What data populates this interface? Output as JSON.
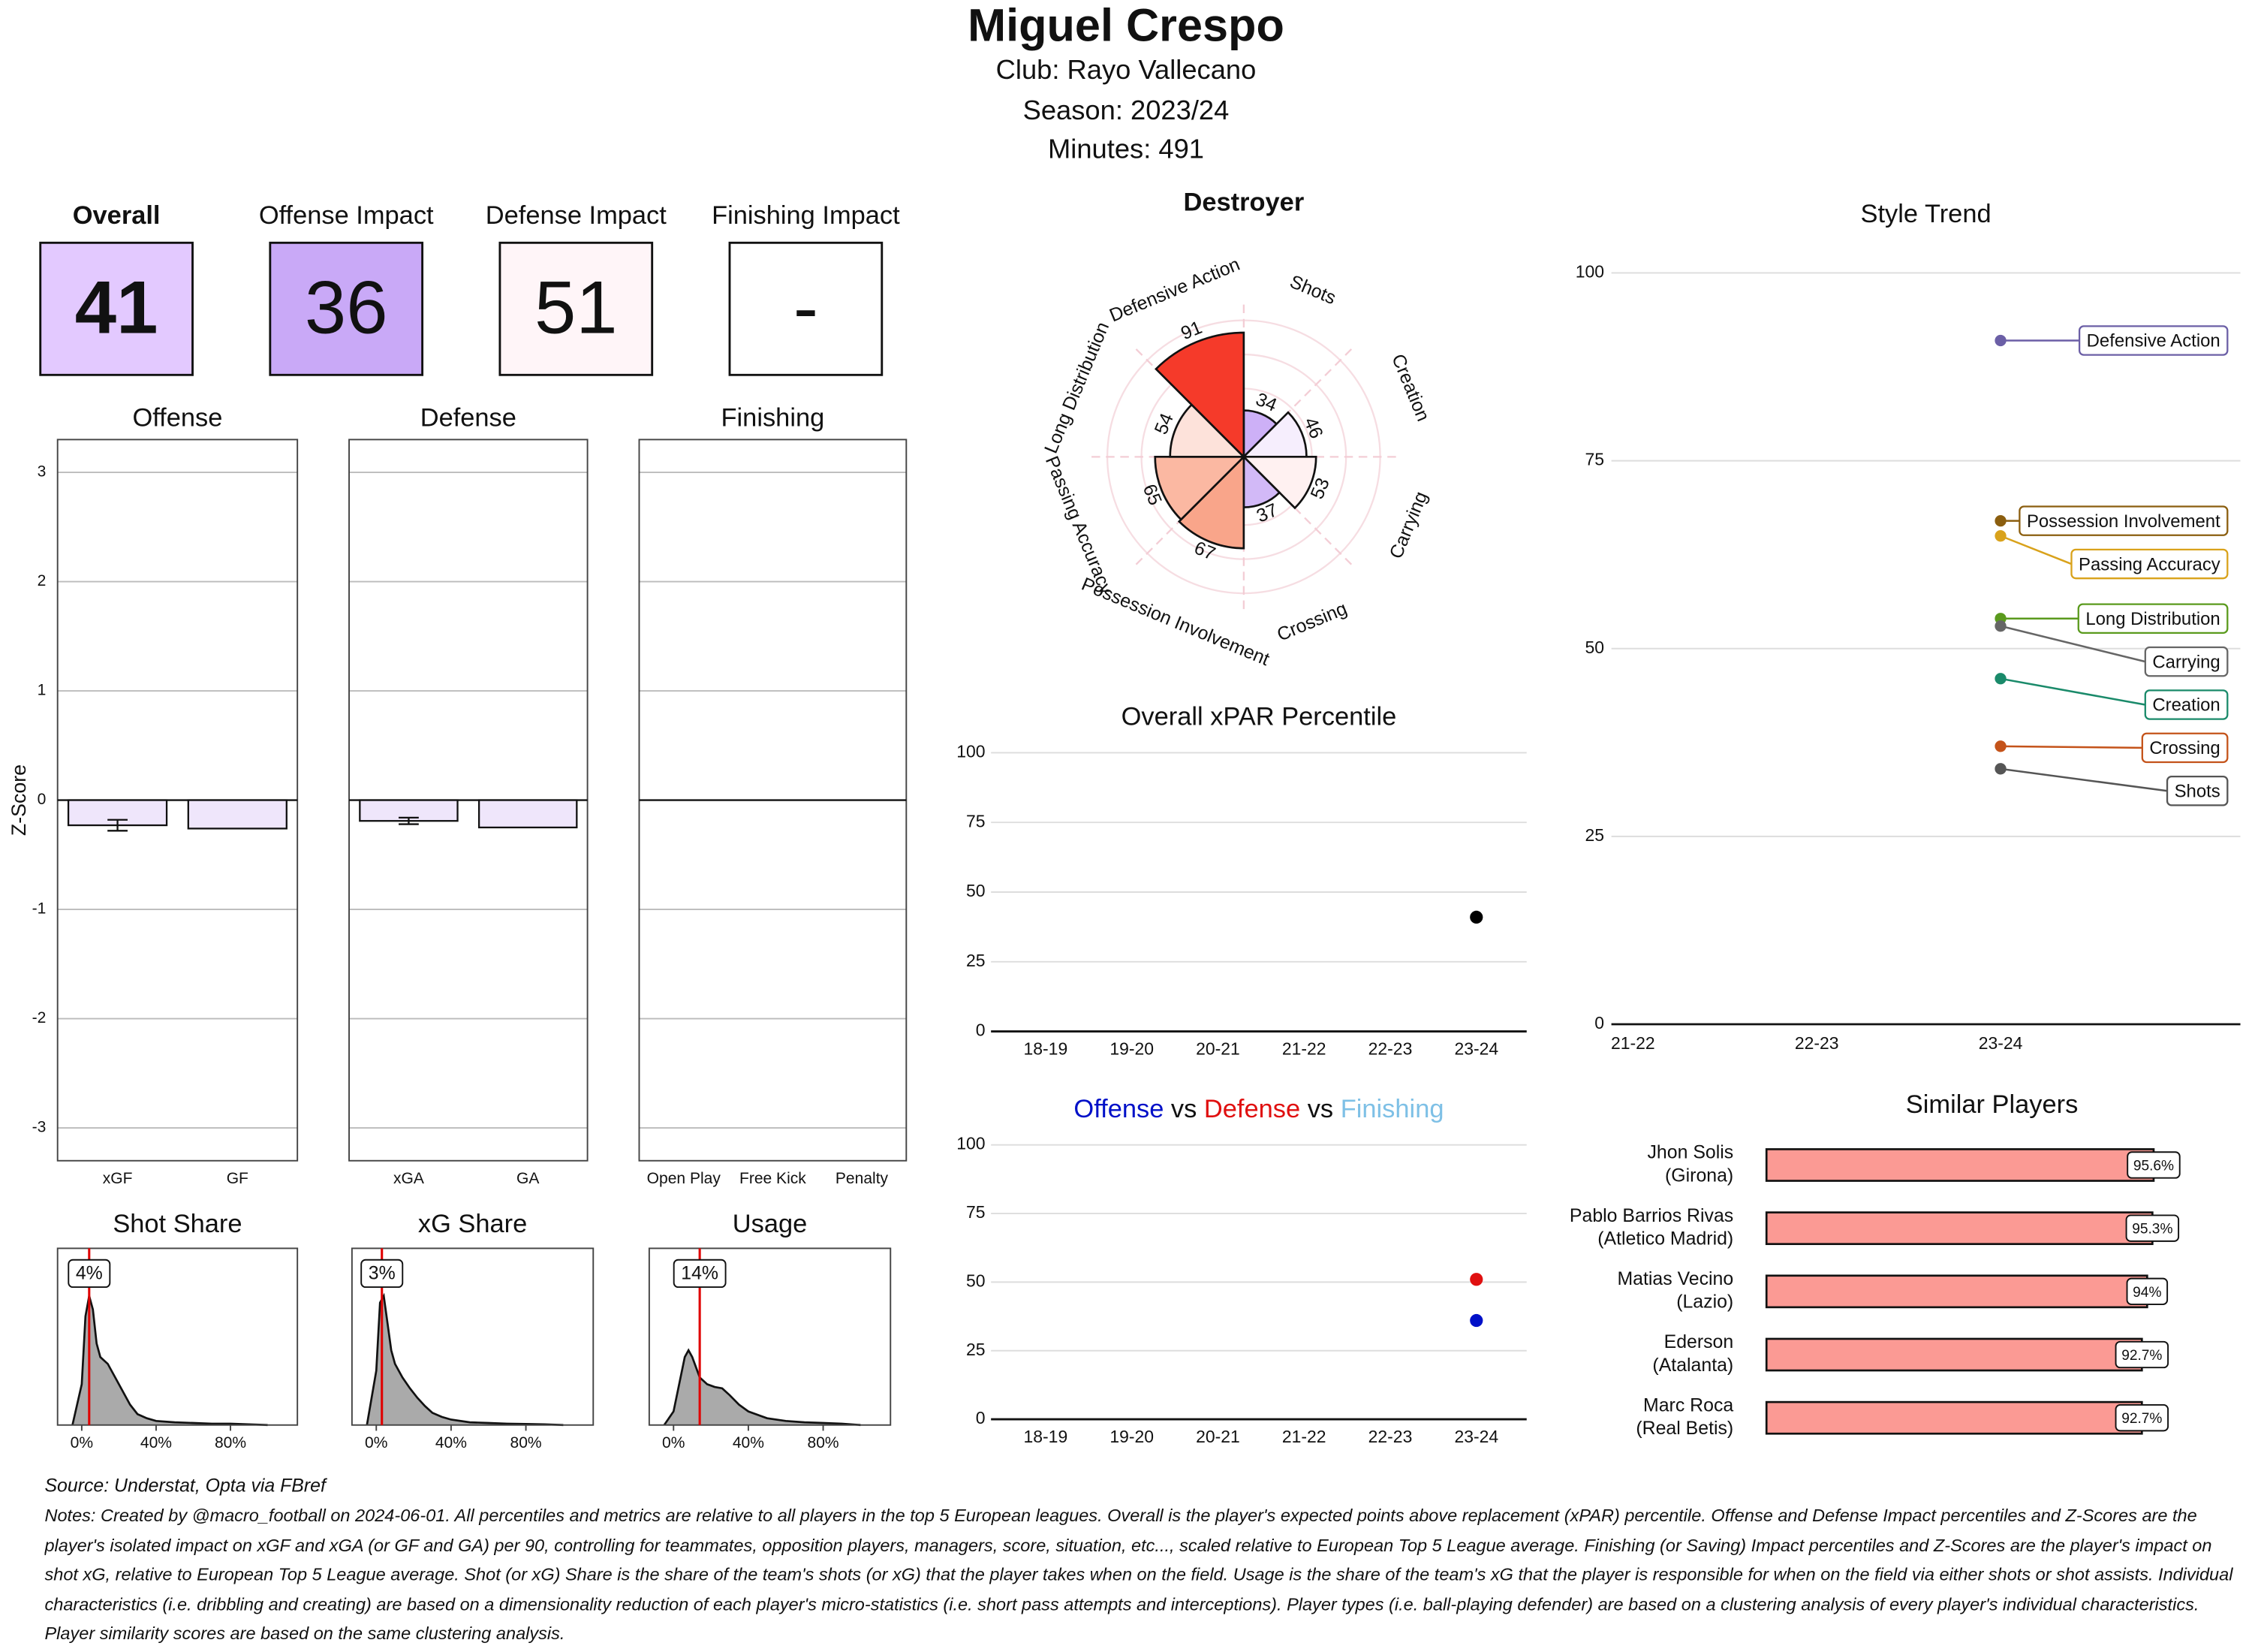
{
  "header": {
    "title": "Miguel Crespo",
    "club": "Club:  Rayo Vallecano",
    "season": "Season:  2023/24",
    "minutes": "Minutes:  491"
  },
  "scores": [
    {
      "label": "Overall",
      "value": "41",
      "color": "#e3c9ff"
    },
    {
      "label": "Offense Impact",
      "value": "36",
      "color": "#c9a9f7"
    },
    {
      "label": "Defense Impact",
      "value": "51",
      "color": "#fff5f8"
    },
    {
      "label": "Finishing Impact",
      "value": "-",
      "color": "#ffffff"
    }
  ],
  "chart_data": [
    {
      "type": "zbar",
      "title": "Offense",
      "y_label": "Z-Score",
      "categories": [
        "xGF",
        "GF"
      ],
      "values": [
        -0.23,
        -0.26
      ],
      "errors": [
        0.05,
        null
      ],
      "color": "#efe6fb",
      "ylim": [
        -3.3,
        3.3
      ],
      "yticks": [
        -3,
        -2,
        -1,
        0,
        1,
        2,
        3
      ],
      "grid": true
    },
    {
      "type": "zbar",
      "title": "Defense",
      "categories": [
        "xGA",
        "GA"
      ],
      "values": [
        -0.19,
        -0.25
      ],
      "errors": [
        0.03,
        null
      ],
      "color": "#efe6fb",
      "ylim": [
        -3.3,
        3.3
      ],
      "yticks": [
        -3,
        -2,
        -1,
        0,
        1,
        2,
        3
      ],
      "grid": true
    },
    {
      "type": "zbar",
      "title": "Finishing",
      "categories": [
        "Open Play",
        "Free Kick",
        "Penalty"
      ],
      "values": [
        0,
        0,
        0
      ],
      "color": "#efe6fb",
      "ylim": [
        -3.3,
        3.3
      ],
      "yticks": [
        -3,
        -2,
        -1,
        0,
        1,
        2,
        3
      ],
      "grid": true
    },
    {
      "type": "density",
      "title": "Shot Share",
      "x": [
        -5,
        0,
        2,
        4,
        6,
        8,
        10,
        14,
        18,
        22,
        26,
        30,
        35,
        40,
        50,
        60,
        70,
        80,
        90,
        100
      ],
      "values": [
        0,
        0.3,
        0.8,
        0.95,
        0.85,
        0.6,
        0.5,
        0.45,
        0.35,
        0.25,
        0.15,
        0.08,
        0.05,
        0.03,
        0.02,
        0.015,
        0.01,
        0.01,
        0.005,
        0
      ],
      "marker": {
        "value": 4,
        "label": "4%"
      },
      "marker_color": "#e00000",
      "color": "#aaaaaa",
      "xlim": [
        -13,
        116
      ],
      "ylim": [
        0,
        1.3
      ],
      "xticks": [
        {
          "value": 0,
          "label": "0%"
        },
        {
          "value": 40,
          "label": "40%"
        },
        {
          "value": 80,
          "label": "80%"
        }
      ]
    },
    {
      "type": "density",
      "title": "xG Share",
      "x": [
        -5,
        0,
        2,
        4,
        6,
        8,
        10,
        14,
        18,
        22,
        26,
        30,
        35,
        40,
        50,
        60,
        70,
        80,
        90,
        100
      ],
      "values": [
        0,
        0.4,
        0.9,
        0.95,
        0.75,
        0.55,
        0.45,
        0.35,
        0.27,
        0.2,
        0.14,
        0.09,
        0.06,
        0.04,
        0.02,
        0.015,
        0.01,
        0.008,
        0.005,
        0
      ],
      "marker": {
        "value": 3,
        "label": "3%"
      },
      "marker_color": "#e00000",
      "color": "#aaaaaa",
      "xlim": [
        -13,
        116
      ],
      "ylim": [
        0,
        1.3
      ],
      "xticks": [
        {
          "value": 0,
          "label": "0%"
        },
        {
          "value": 40,
          "label": "40%"
        },
        {
          "value": 80,
          "label": "80%"
        }
      ]
    },
    {
      "type": "density",
      "title": "Usage",
      "x": [
        -5,
        0,
        3,
        6,
        8,
        10,
        14,
        18,
        22,
        26,
        30,
        35,
        40,
        50,
        60,
        70,
        80,
        90,
        100
      ],
      "values": [
        0,
        0.1,
        0.3,
        0.5,
        0.55,
        0.5,
        0.35,
        0.3,
        0.28,
        0.27,
        0.22,
        0.15,
        0.1,
        0.05,
        0.03,
        0.02,
        0.015,
        0.01,
        0
      ],
      "marker": {
        "value": 14,
        "label": "14%"
      },
      "marker_color": "#e00000",
      "color": "#aaaaaa",
      "xlim": [
        -13,
        116
      ],
      "ylim": [
        0,
        1.3
      ],
      "xticks": [
        {
          "value": 0,
          "label": "0%"
        },
        {
          "value": 40,
          "label": "40%"
        },
        {
          "value": 80,
          "label": "80%"
        }
      ]
    },
    {
      "type": "polar-bar",
      "title": "Destroyer",
      "categories": [
        "Shots",
        "Creation",
        "Carrying",
        "Crossing",
        "Possession Involvement",
        "Passing Accuracy",
        "Long Distribution",
        "Defensive Action"
      ],
      "values": [
        34,
        46,
        53,
        37,
        67,
        65,
        54,
        91
      ],
      "colors": [
        "#cdb0f7",
        "#f6eefd",
        "#fff1f1",
        "#d2b9f7",
        "#f9a58a",
        "#fbb8a2",
        "#fde2da",
        "#f53a2a"
      ],
      "rlim": [
        0,
        100
      ]
    },
    {
      "type": "dot",
      "title": "Overall xPAR Percentile",
      "categories": [
        "18-19",
        "19-20",
        "20-21",
        "21-22",
        "22-23",
        "23-24"
      ],
      "values": [
        null,
        null,
        null,
        null,
        null,
        41
      ],
      "color": "#000000",
      "ylim": [
        0,
        100
      ],
      "yticks": [
        0,
        25,
        50,
        75,
        100
      ],
      "grid": true
    },
    {
      "type": "dot",
      "separator": "vs",
      "categories": [
        "18-19",
        "19-20",
        "20-21",
        "21-22",
        "22-23",
        "23-24"
      ],
      "series": [
        {
          "name": "Offense",
          "color": "#0010c8",
          "values": [
            null,
            null,
            null,
            null,
            null,
            36
          ]
        },
        {
          "name": "Defense",
          "color": "#e01010",
          "values": [
            null,
            null,
            null,
            null,
            null,
            51
          ]
        },
        {
          "name": "Finishing",
          "color": "#7ec0e6",
          "values": [
            null,
            null,
            null,
            null,
            null,
            null
          ]
        }
      ],
      "ylim": [
        0,
        100
      ],
      "yticks": [
        0,
        25,
        50,
        75,
        100
      ],
      "grid": true
    },
    {
      "type": "line",
      "title": "Style Trend",
      "categories": [
        "21-22",
        "22-23",
        "23-24"
      ],
      "series": [
        {
          "name": "Defensive Action",
          "color": "#6b5fa6",
          "values": [
            null,
            null,
            91
          ]
        },
        {
          "name": "Possession Involvement",
          "color": "#8b5e0f",
          "values": [
            null,
            null,
            67
          ]
        },
        {
          "name": "Passing Accuracy",
          "color": "#d9a21b",
          "values": [
            null,
            null,
            65
          ]
        },
        {
          "name": "Long Distribution",
          "color": "#5a9a1d",
          "values": [
            null,
            null,
            54
          ]
        },
        {
          "name": "Carrying",
          "color": "#666666",
          "values": [
            null,
            null,
            53
          ]
        },
        {
          "name": "Creation",
          "color": "#1a8a6a",
          "values": [
            null,
            null,
            46
          ]
        },
        {
          "name": "Crossing",
          "color": "#c4531a",
          "values": [
            null,
            null,
            37
          ]
        },
        {
          "name": "Shots",
          "color": "#555555",
          "values": [
            null,
            null,
            34
          ]
        }
      ],
      "ylim": [
        0,
        100
      ],
      "yticks": [
        0,
        25,
        50,
        75,
        100
      ],
      "grid": true
    },
    {
      "type": "hbar",
      "title": "Similar Players",
      "categories": [
        "Jhon Solis",
        "Pablo Barrios Rivas",
        "Matias Vecino",
        "Ederson",
        "Marc Roca"
      ],
      "groups": [
        "(Girona)",
        "(Atletico Madrid)",
        "(Lazio)",
        "(Atalanta)",
        "(Real Betis)"
      ],
      "values": [
        95.6,
        95.3,
        94,
        92.7,
        92.7
      ],
      "value_labels": [
        "95.6%",
        "95.3%",
        "94%",
        "92.7%",
        "92.7%"
      ],
      "color": "#fb9a94",
      "xlim": [
        0,
        100
      ]
    }
  ],
  "source": "Source: Understat, Opta via FBref",
  "notes": "Notes: Created by @macro_football on 2024-06-01. All percentiles and metrics are relative to all players in the top 5 European leagues. Overall is the player's expected points above replacement (xPAR) percentile. Offense and Defense Impact percentiles and Z-Scores are the player's isolated impact on xGF and xGA (or GF and GA) per 90, controlling for teammates, opposition players, managers, score, situation, etc..., scaled relative to European Top 5 League average. Finishing (or Saving) Impact percentiles and Z-Scores are the player's impact on shot xG, relative to European Top 5 League average. Shot (or xG) Share is the share of the team's shots (or xG) that the player takes when on the field. Usage is the share of the team's xG that the player is responsible for when on the field via either shots or shot assists. Individual characteristics (i.e. dribbling and creating) are based on a dimensionality reduction of each player's micro-statistics (i.e. short pass attempts and interceptions). Player types (i.e. ball-playing defender) are based on a clustering analysis of every player's individual characteristics. Player similarity scores are based on the same clustering analysis."
}
